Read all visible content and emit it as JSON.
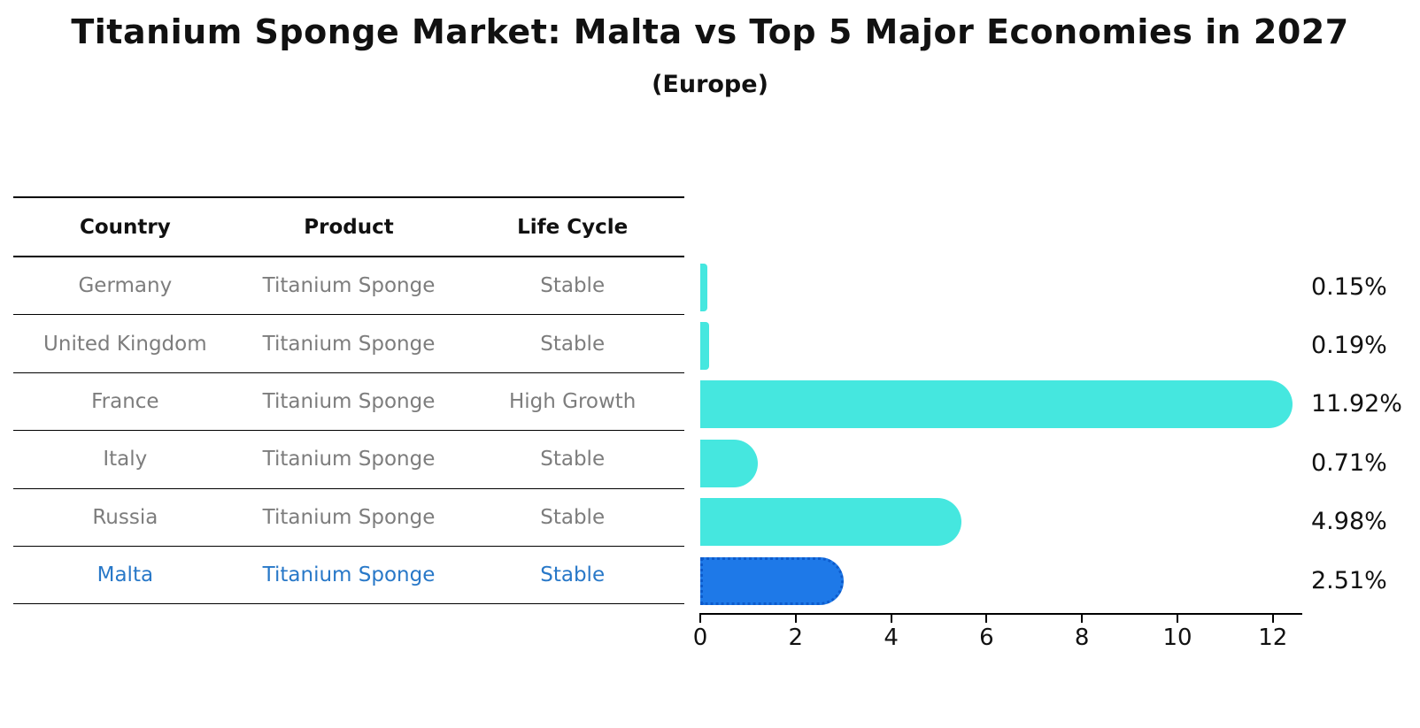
{
  "title": "Titanium Sponge Market: Malta vs Top 5 Major Economies in 2027",
  "subtitle": "(Europe)",
  "table": {
    "headers": [
      "Country",
      "Product",
      "Life Cycle"
    ],
    "rows": [
      {
        "country": "Germany",
        "product": "Titanium Sponge",
        "life_cycle": "Stable",
        "highlight": false
      },
      {
        "country": "United Kingdom",
        "product": "Titanium Sponge",
        "life_cycle": "Stable",
        "highlight": false
      },
      {
        "country": "France",
        "product": "Titanium Sponge",
        "life_cycle": "High Growth",
        "highlight": false
      },
      {
        "country": "Italy",
        "product": "Titanium Sponge",
        "life_cycle": "Stable",
        "highlight": false
      },
      {
        "country": "Russia",
        "product": "Titanium Sponge",
        "life_cycle": "Stable",
        "highlight": false
      },
      {
        "country": "Malta",
        "product": "Titanium Sponge",
        "life_cycle": "Stable",
        "highlight": true
      }
    ]
  },
  "chart_data": {
    "type": "bar",
    "orientation": "horizontal",
    "title": "Titanium Sponge Market: Malta vs Top 5 Major Economies in 2027",
    "subtitle": "(Europe)",
    "categories": [
      "Germany",
      "United Kingdom",
      "France",
      "Italy",
      "Russia",
      "Malta"
    ],
    "values": [
      0.15,
      0.19,
      11.92,
      0.71,
      4.98,
      2.51
    ],
    "value_labels": [
      "0.15%",
      "0.19%",
      "11.92%",
      "0.71%",
      "4.98%",
      "2.51%"
    ],
    "x_ticks": [
      "0",
      "2",
      "4",
      "6",
      "8",
      "10",
      "12"
    ],
    "x_tick_values": [
      0,
      2,
      4,
      6,
      8,
      10,
      12
    ],
    "xlim": [
      0,
      12.56
    ],
    "xlabel": "",
    "ylabel": "",
    "grid": false,
    "legend": false,
    "highlight_index": 5
  },
  "colors": {
    "bar": "#45e7df",
    "highlight_bar": "#1e79e8",
    "highlight_border": "#0d5bcc",
    "table_text": "#7d7d7d",
    "highlight_text": "#2878c8",
    "heading_text": "#111111",
    "axis": "#000000",
    "background": "#ffffff"
  }
}
